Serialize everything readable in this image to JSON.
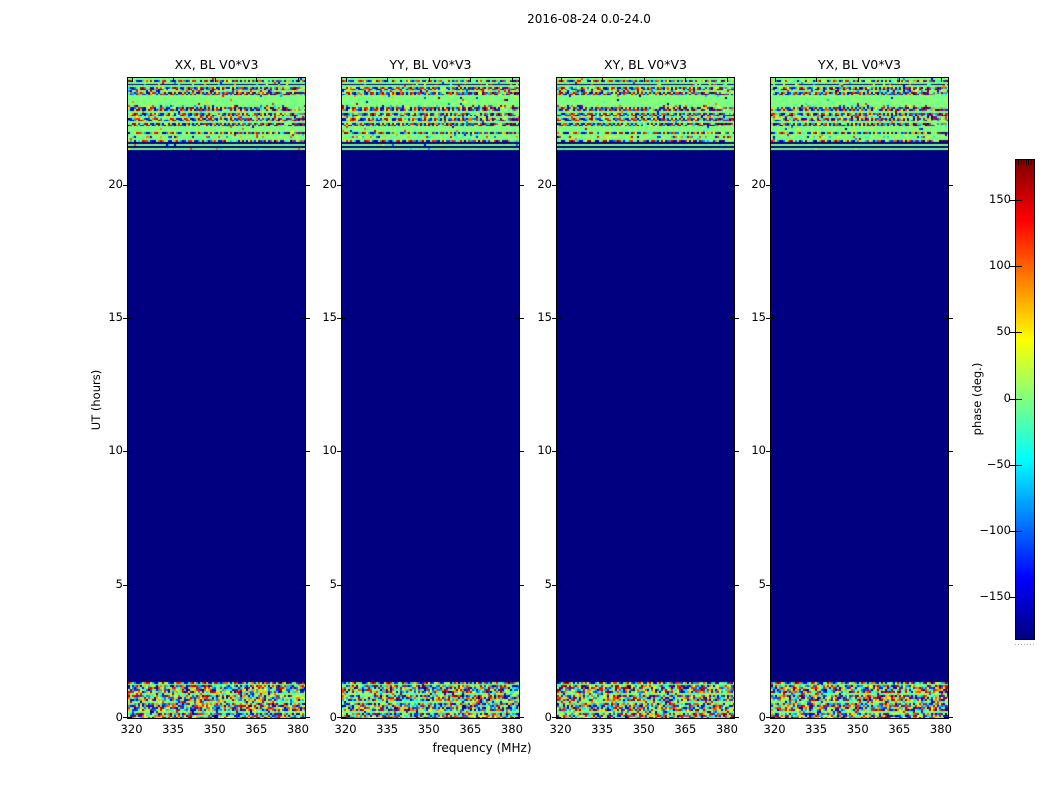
{
  "figure": {
    "title": "2016-08-24 0.0-24.0"
  },
  "chart_data": {
    "type": "heatmap",
    "title": "2016-08-24 0.0-24.0",
    "xlabel": "frequency (MHz)",
    "ylabel": "UT (hours)",
    "x_ticks": [
      "320",
      "335",
      "350",
      "365",
      "380"
    ],
    "x_tick_values_mhz": [
      320,
      335,
      350,
      365,
      380
    ],
    "y_ticks": [
      "20",
      "15",
      "10",
      "5",
      "0"
    ],
    "y_tick_values_hours": [
      20,
      15,
      10,
      5,
      0
    ],
    "x_range_mhz": [
      319.5,
      385.5
    ],
    "y_range_hours": [
      0.0,
      24.0
    ],
    "colormap": "jet",
    "value_range_deg": [
      -180,
      180
    ],
    "panels": [
      {
        "title": "XX, BL V0*V3",
        "seed": 11
      },
      {
        "title": "YY, BL V0*V3",
        "seed": 29
      },
      {
        "title": "XY, BL V0*V3",
        "seed": 47
      },
      {
        "title": "YX, BL V0*V3",
        "seed": 63
      }
    ],
    "background_phase_deg": -180,
    "regions": {
      "quiet_hours": [
        1.35,
        21.3
      ],
      "quiet_phase_deg": -180,
      "top_band_hours": [
        21.3,
        24.0
      ],
      "bottom_band_hours": [
        0.0,
        1.35
      ],
      "top_band_stripes": [
        [
          2,
          "green"
        ],
        [
          2,
          "noise"
        ],
        [
          2,
          "green"
        ],
        [
          1,
          "dark"
        ],
        [
          2,
          "green"
        ],
        [
          3,
          "noise"
        ],
        [
          2,
          "mix"
        ],
        [
          3,
          "noise2"
        ],
        [
          10,
          "green"
        ],
        [
          2,
          "mix"
        ],
        [
          4,
          "noise2"
        ],
        [
          2,
          "green"
        ],
        [
          3,
          "noise"
        ],
        [
          2,
          "mix"
        ],
        [
          3,
          "noise"
        ],
        [
          2,
          "green"
        ],
        [
          3,
          "noise2"
        ],
        [
          6,
          "green"
        ],
        [
          2,
          "noise"
        ],
        [
          2,
          "green"
        ],
        [
          2,
          "mix"
        ],
        [
          2,
          "green"
        ],
        [
          2,
          "noise"
        ],
        [
          2,
          "navy"
        ],
        [
          2,
          "green"
        ],
        [
          2,
          "navy"
        ],
        [
          2,
          "green"
        ]
      ],
      "bottom_band_stripes": [
        [
          2,
          "noise"
        ],
        [
          1,
          "green"
        ],
        [
          8,
          "dense"
        ],
        [
          2,
          "mix"
        ],
        [
          6,
          "dense"
        ],
        [
          2,
          "mix"
        ],
        [
          8,
          "dense"
        ],
        [
          2,
          "mix"
        ],
        [
          5,
          "dense"
        ]
      ]
    },
    "colorbar": {
      "label": "phase (deg.)",
      "tick_labels": [
        "150",
        "100",
        "50",
        "0",
        "−50",
        "−100",
        "−150"
      ],
      "tick_values": [
        150,
        100,
        50,
        0,
        -50,
        -100,
        -150
      ],
      "range_deg": [
        -180,
        180
      ]
    }
  }
}
